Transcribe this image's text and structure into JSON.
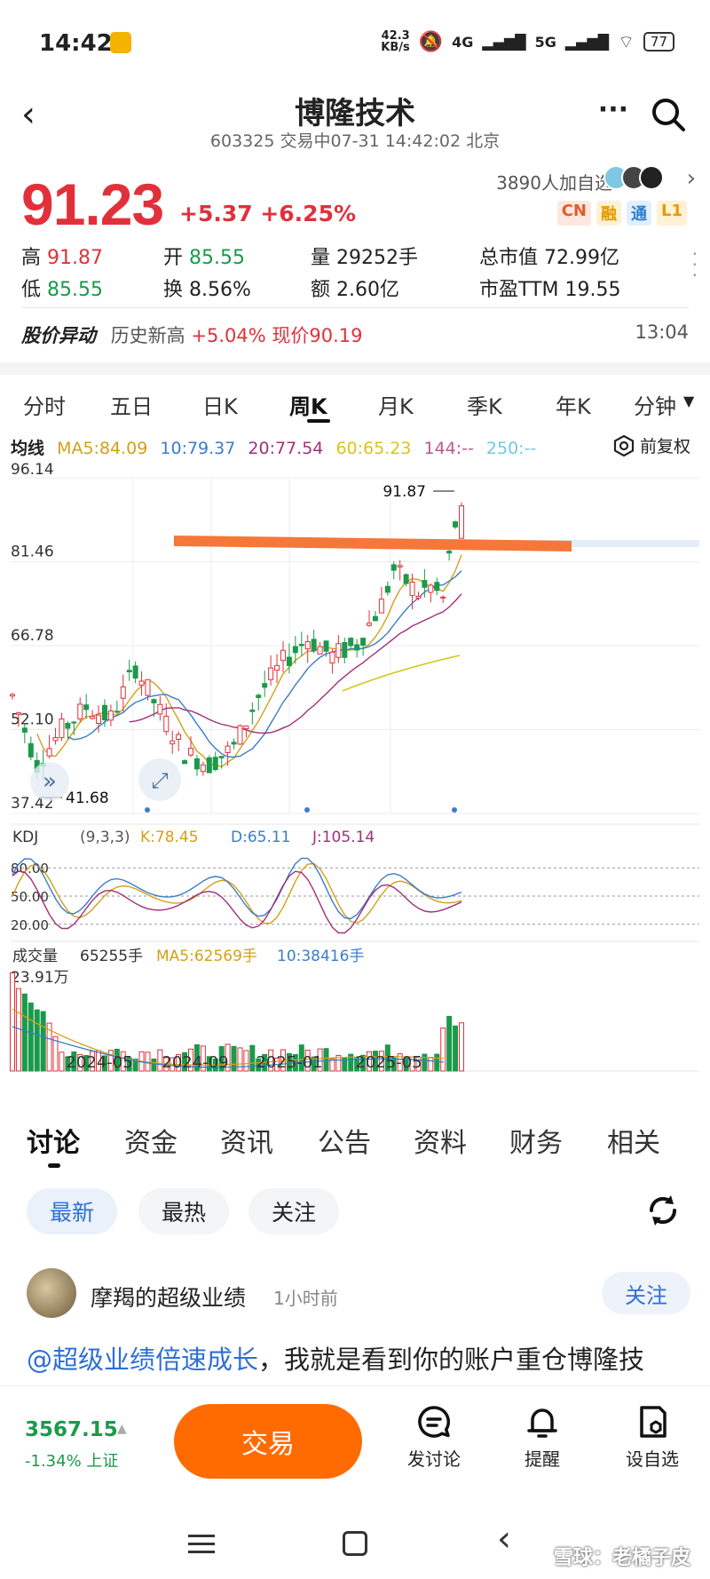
{
  "status_bar": {
    "time": "14:42",
    "net_speed": "42.3\nKB/s",
    "net_label": "4G",
    "net_label2": "5G",
    "battery": "77"
  },
  "header": {
    "title": "博隆技术",
    "subtitle": "603325 交易中07-31 14:42:02 北京"
  },
  "quote": {
    "price": "91.23",
    "change": "+5.37 +6.25%",
    "watchers": "3890人加自选",
    "tags": [
      "CN",
      "融",
      "通",
      "L1"
    ],
    "stats": [
      {
        "label": "高",
        "value": "91.87",
        "color": "red"
      },
      {
        "label": "开",
        "value": "85.55",
        "color": "green"
      },
      {
        "label": "量",
        "value": "29252手",
        "color": ""
      },
      {
        "label": "总市值",
        "value": "72.99亿",
        "color": ""
      },
      {
        "label": "低",
        "value": "85.55",
        "color": "green"
      },
      {
        "label": "换",
        "value": "8.56%",
        "color": ""
      },
      {
        "label": "额",
        "value": "2.60亿",
        "color": ""
      },
      {
        "label": "市盈TTM",
        "value": "19.55",
        "color": ""
      }
    ]
  },
  "move": {
    "label": "股价异动",
    "text_prefix": "历史新高 ",
    "text_pct": "+5.04% 现价90.19",
    "time": "13:04"
  },
  "ktabs": [
    "分时",
    "五日",
    "日K",
    "周K",
    "月K",
    "季K",
    "年K",
    "分钟"
  ],
  "legend": {
    "title": "均线",
    "ma5": "MA5:84.09",
    "ma10": "10:79.37",
    "ma20": "20:77.54",
    "ma60": "60:65.23",
    "ma144": "144:--",
    "ma250": "250:--",
    "adjust": "前复权"
  },
  "chart_data": {
    "type": "candlestick",
    "y_ticks": [
      "96.14",
      "81.46",
      "66.78",
      "52.10",
      "37.42"
    ],
    "high_label": "91.87",
    "low_label": "41.68",
    "x_ticks": [
      "2024-05",
      "2024-09",
      "2025-01",
      "2025-05"
    ],
    "kdj_label": "KDJ",
    "kdj_params": "(9,3,3)",
    "kdj_k": "K:78.45",
    "kdj_d": "D:65.11",
    "kdj_j": "J:105.14",
    "kdj_levels": [
      "80.00",
      "50.00",
      "20.00"
    ],
    "vol_label": "成交量",
    "vol_value": "65255手",
    "vol_ma5": "MA5:62569手",
    "vol_ma10": "10:38416手",
    "vol_max": "23.91万",
    "colors": {
      "up": "#e0313b",
      "down": "#1a9a4a",
      "ma5": "#d4a017",
      "ma10": "#3a7dc9",
      "ma20": "#a0307a",
      "ma60": "#d8c51a",
      "resistance": "#f5773a"
    }
  },
  "sections": [
    "讨论",
    "资金",
    "资讯",
    "公告",
    "资料",
    "财务",
    "相关"
  ],
  "pills": [
    "最新",
    "最热",
    "关注"
  ],
  "post": {
    "author": "摩羯的超级业绩",
    "time": "1小时前",
    "follow": "关注",
    "mention": "@超级业绩倍速成长",
    "body": "，我就是看到你的账户重仓博隆技"
  },
  "bottom": {
    "index_value": "3567.15",
    "index_change": "-1.34% 上证",
    "trade": "交易",
    "discuss": "发讨论",
    "remind": "提醒",
    "watchlist": "设自选"
  },
  "watermark": "雪球：老橘子皮"
}
